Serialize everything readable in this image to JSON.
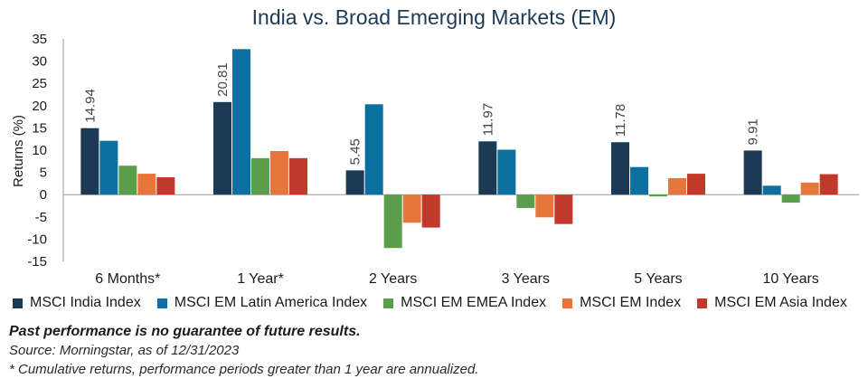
{
  "chart_data": {
    "type": "bar",
    "title": "India vs. Broad Emerging Markets (EM)",
    "ylabel": "Returns (%)",
    "xlabel": "",
    "ylim": [
      -15,
      35
    ],
    "yticks": [
      35,
      30,
      25,
      20,
      15,
      10,
      5,
      0,
      -5,
      -10,
      -15
    ],
    "categories": [
      "6 Months*",
      "1 Year*",
      "2 Years",
      "3 Years",
      "5 Years",
      "10 Years"
    ],
    "series": [
      {
        "name": "MSCI India Index",
        "color": "#1b3a55",
        "values": [
          14.94,
          20.81,
          5.45,
          11.97,
          11.78,
          9.91
        ]
      },
      {
        "name": "MSCI EM Latin America Index",
        "color": "#0b6fa0",
        "values": [
          12.1,
          32.7,
          20.3,
          10.1,
          6.2,
          2.0
        ]
      },
      {
        "name": "MSCI EM EMEA Index",
        "color": "#5a9e4c",
        "values": [
          6.5,
          8.2,
          -12.0,
          -3.0,
          -0.4,
          -1.8
        ]
      },
      {
        "name": "MSCI EM Index",
        "color": "#e8763a",
        "values": [
          4.7,
          9.8,
          -6.3,
          -5.1,
          3.7,
          2.7
        ]
      },
      {
        "name": "MSCI EM Asia Index",
        "color": "#c0392b",
        "values": [
          3.9,
          8.2,
          -7.4,
          -6.6,
          4.7,
          4.6
        ]
      }
    ],
    "data_labels": {
      "series": "MSCI India Index",
      "labels": [
        "14.94",
        "20.81",
        "5.45",
        "11.97",
        "11.78",
        "9.91"
      ]
    }
  },
  "notes": {
    "disclaimer": "Past performance is no guarantee of future results.",
    "source": "Source: Morningstar, as of 12/31/2023",
    "footnote": "*  Cumulative returns, performance periods greater than 1 year are annualized."
  }
}
